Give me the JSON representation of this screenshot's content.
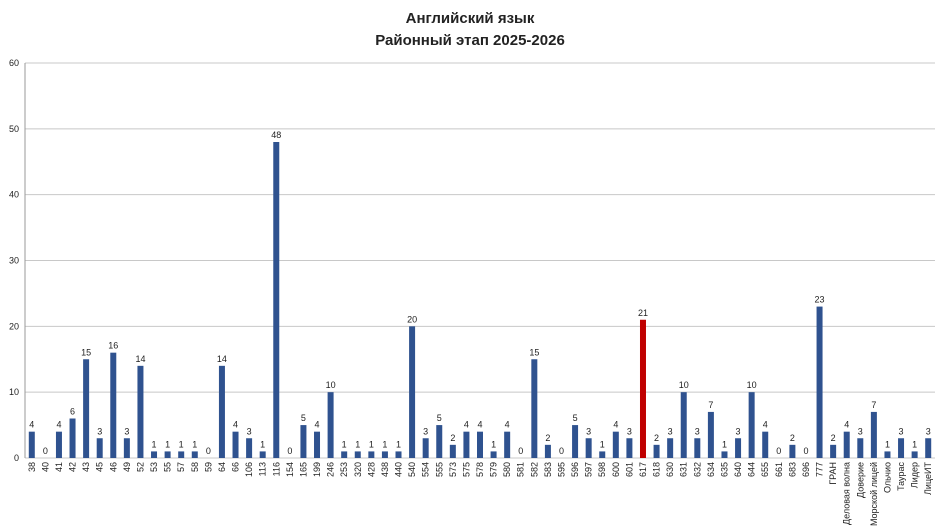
{
  "chart_data": {
    "type": "bar",
    "title": "Английский язык",
    "subtitle": "Районный этап 2025-2026",
    "categories": [
      "38",
      "40",
      "41",
      "42",
      "43",
      "45",
      "46",
      "49",
      "52",
      "53",
      "55",
      "57",
      "58",
      "59",
      "64",
      "66",
      "106",
      "113",
      "116",
      "154",
      "165",
      "199",
      "246",
      "253",
      "320",
      "428",
      "438",
      "440",
      "540",
      "554",
      "555",
      "573",
      "575",
      "578",
      "579",
      "580",
      "581",
      "582",
      "583",
      "595",
      "596",
      "597",
      "598",
      "600",
      "601",
      "617",
      "618",
      "630",
      "631",
      "632",
      "634",
      "635",
      "640",
      "644",
      "655",
      "661",
      "683",
      "696",
      "777",
      "ГРАН",
      "Деловая волна",
      "Доверие",
      "Морской лицей",
      "Ольчио",
      "Таурас",
      "Лидер",
      "ЛицеИТ"
    ],
    "values": [
      4,
      0,
      4,
      6,
      15,
      3,
      16,
      3,
      14,
      1,
      1,
      1,
      1,
      0,
      14,
      4,
      3,
      1,
      48,
      0,
      5,
      4,
      10,
      1,
      1,
      1,
      1,
      1,
      20,
      3,
      5,
      2,
      4,
      4,
      1,
      4,
      0,
      15,
      2,
      0,
      5,
      3,
      1,
      4,
      3,
      21,
      2,
      3,
      10,
      3,
      7,
      1,
      3,
      10,
      4,
      0,
      2,
      0,
      23,
      2,
      4,
      3,
      7,
      1,
      3,
      1,
      3
    ],
    "colors": [
      "#2f528f",
      "#2f528f",
      "#2f528f",
      "#2f528f",
      "#2f528f",
      "#2f528f",
      "#2f528f",
      "#2f528f",
      "#2f528f",
      "#2f528f",
      "#2f528f",
      "#2f528f",
      "#2f528f",
      "#2f528f",
      "#2f528f",
      "#2f528f",
      "#2f528f",
      "#2f528f",
      "#2f528f",
      "#2f528f",
      "#2f528f",
      "#2f528f",
      "#2f528f",
      "#2f528f",
      "#2f528f",
      "#2f528f",
      "#2f528f",
      "#2f528f",
      "#2f528f",
      "#2f528f",
      "#2f528f",
      "#2f528f",
      "#2f528f",
      "#2f528f",
      "#2f528f",
      "#2f528f",
      "#2f528f",
      "#2f528f",
      "#2f528f",
      "#2f528f",
      "#2f528f",
      "#2f528f",
      "#2f528f",
      "#2f528f",
      "#2f528f",
      "#c00000",
      "#2f528f",
      "#2f528f",
      "#2f528f",
      "#2f528f",
      "#2f528f",
      "#2f528f",
      "#2f528f",
      "#2f528f",
      "#2f528f",
      "#2f528f",
      "#2f528f",
      "#2f528f",
      "#2f528f",
      "#2f528f",
      "#2f528f",
      "#2f528f",
      "#2f528f",
      "#2f528f",
      "#2f528f",
      "#2f528f",
      "#2f528f"
    ],
    "ylim": [
      0,
      60
    ],
    "yticks": [
      0,
      10,
      20,
      30,
      40,
      50,
      60
    ],
    "grid": true
  }
}
